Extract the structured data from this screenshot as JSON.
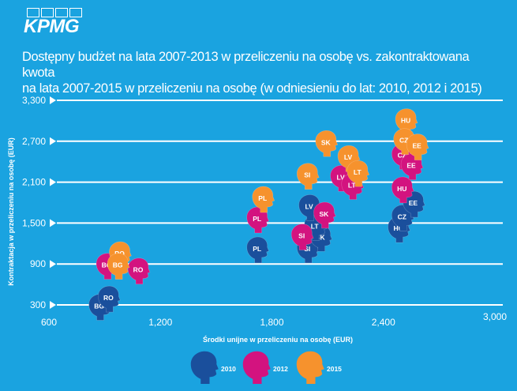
{
  "brand": {
    "logo": "KPMG"
  },
  "colors": {
    "background": "#1aa3e0",
    "s2010": "#1a4f9c",
    "s2012": "#d3137f",
    "s2015": "#f6922d",
    "grid": "#ffffff"
  },
  "title": {
    "line1": "Dostępny budżet na lata 2007-2013 w przeliczeniu na osobę vs. zakontraktowana kwota",
    "line2": "na lata 2007-2015 w przeliczeniu na osobę (w odniesieniu do lat: 2010, 2012 i 2015)"
  },
  "chart_data": {
    "type": "scatter",
    "title": "Dostępny budżet na lata 2007-2013 w przeliczeniu na osobę vs. zakontraktowana kwota na lata 2007-2015 w przeliczeniu na osobę (w odniesieniu do lat: 2010, 2012 i 2015)",
    "xlabel": "Środki unijne w przeliczeniu na  osobę (EUR)",
    "ylabel": "Kontraktacja w przeliczeniu na osobę (EUR)",
    "xlim": [
      600,
      3000
    ],
    "ylim": [
      300,
      3300
    ],
    "xticks": [
      "600",
      "1,200",
      "1,800",
      "2,400",
      "3,000"
    ],
    "yticks": [
      "300",
      "900",
      "1,500",
      "2,100",
      "2,700",
      "3,300"
    ],
    "legend": [
      "2010",
      "2012",
      "2015"
    ],
    "series": [
      {
        "name": "2010",
        "points": [
          {
            "label": "BG",
            "x": 870,
            "y": 260
          },
          {
            "label": "RO",
            "x": 920,
            "y": 380
          },
          {
            "label": "PL",
            "x": 1720,
            "y": 1100
          },
          {
            "label": "SI",
            "x": 1990,
            "y": 1100
          },
          {
            "label": "SK",
            "x": 2060,
            "y": 1270
          },
          {
            "label": "LT",
            "x": 2030,
            "y": 1430
          },
          {
            "label": "LV",
            "x": 2000,
            "y": 1720
          },
          {
            "label": "HU",
            "x": 2480,
            "y": 1400
          },
          {
            "label": "CZ",
            "x": 2500,
            "y": 1570
          },
          {
            "label": "EE",
            "x": 2560,
            "y": 1770
          }
        ]
      },
      {
        "name": "2012",
        "points": [
          {
            "label": "BG",
            "x": 910,
            "y": 860
          },
          {
            "label": "RO",
            "x": 1080,
            "y": 790
          },
          {
            "label": "PL",
            "x": 1720,
            "y": 1540
          },
          {
            "label": "SI",
            "x": 1960,
            "y": 1290
          },
          {
            "label": "SK",
            "x": 2080,
            "y": 1610
          },
          {
            "label": "LV",
            "x": 2170,
            "y": 2150
          },
          {
            "label": "LT",
            "x": 2230,
            "y": 2030
          },
          {
            "label": "HU",
            "x": 2500,
            "y": 1980
          },
          {
            "label": "CZ",
            "x": 2500,
            "y": 2470
          },
          {
            "label": "EE",
            "x": 2550,
            "y": 2320
          }
        ]
      },
      {
        "name": "2015",
        "points": [
          {
            "label": "RO",
            "x": 980,
            "y": 1030
          },
          {
            "label": "BG",
            "x": 970,
            "y": 860
          },
          {
            "label": "PL",
            "x": 1750,
            "y": 1840
          },
          {
            "label": "SI",
            "x": 1990,
            "y": 2180
          },
          {
            "label": "SK",
            "x": 2090,
            "y": 2660
          },
          {
            "label": "LV",
            "x": 2210,
            "y": 2440
          },
          {
            "label": "LT",
            "x": 2260,
            "y": 2220
          },
          {
            "label": "HU",
            "x": 2520,
            "y": 2980
          },
          {
            "label": "CZ",
            "x": 2510,
            "y": 2690
          },
          {
            "label": "EE",
            "x": 2580,
            "y": 2610
          }
        ]
      }
    ]
  }
}
